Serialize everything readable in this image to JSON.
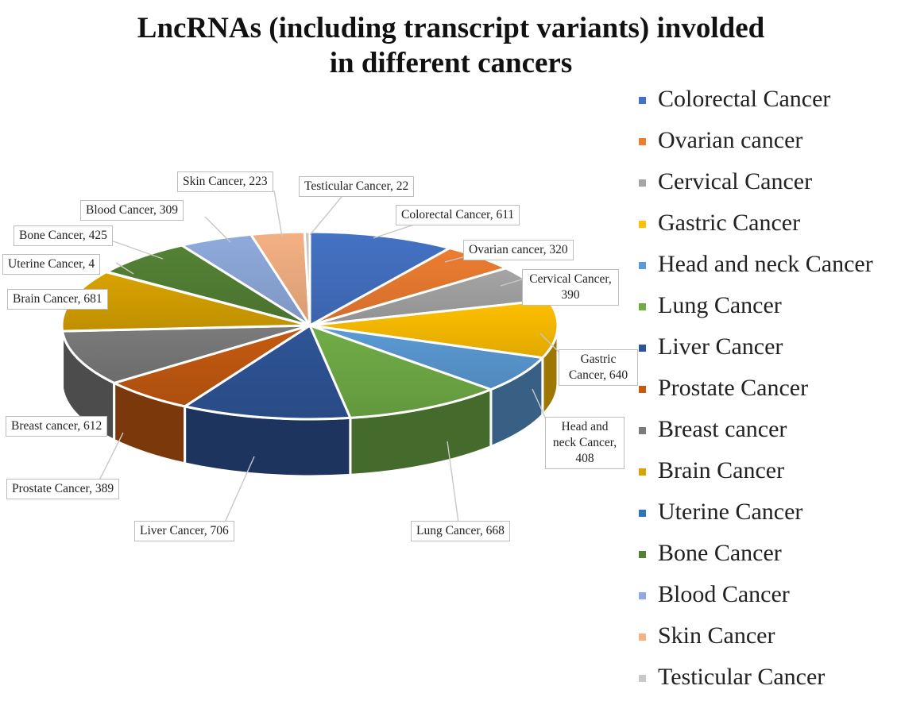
{
  "chart_data": {
    "type": "pie",
    "title_lines": [
      "LncRNAs (including transcript variants) involded",
      "in different cancers"
    ],
    "slices": [
      {
        "name": "Colorectal Cancer",
        "value": 611,
        "label": "Colorectal Cancer, 611",
        "color": "#4472c4"
      },
      {
        "name": "Ovarian cancer",
        "value": 320,
        "label": "Ovarian cancer, 320",
        "color": "#ed7d31"
      },
      {
        "name": "Cervical Cancer",
        "value": 390,
        "label": "Cervical Cancer, 390",
        "color": "#a5a5a5"
      },
      {
        "name": "Gastric Cancer",
        "value": 640,
        "label": "Gastric Cancer, 640",
        "color": "#ffc000"
      },
      {
        "name": "Head and neck Cancer",
        "value": 408,
        "label": "Head and neck Cancer, 408",
        "color": "#5b9bd5"
      },
      {
        "name": "Lung Cancer",
        "value": 668,
        "label": "Lung Cancer, 668",
        "color": "#70ad47"
      },
      {
        "name": "Liver Cancer",
        "value": 706,
        "label": "Liver Cancer, 706",
        "color": "#2f5597"
      },
      {
        "name": "Prostate Cancer",
        "value": 389,
        "label": "Prostate Cancer, 389",
        "color": "#c55a11"
      },
      {
        "name": "Breast cancer",
        "value": 612,
        "label": "Breast cancer, 612",
        "color": "#7b7b7b"
      },
      {
        "name": "Brain Cancer",
        "value": 681,
        "label": "Brain Cancer, 681",
        "color": "#d9a300"
      },
      {
        "name": "Uterine Cancer",
        "value": 4,
        "label": "Uterine Cancer, 4",
        "color": "#2e75b6"
      },
      {
        "name": "Bone Cancer",
        "value": 425,
        "label": "Bone Cancer, 425",
        "color": "#548235"
      },
      {
        "name": "Blood Cancer",
        "value": 309,
        "label": "Blood Cancer, 309",
        "color": "#8faadc"
      },
      {
        "name": "Skin Cancer",
        "value": 223,
        "label": "Skin Cancer, 223",
        "color": "#f4b183"
      },
      {
        "name": "Testicular Cancer",
        "value": 22,
        "label": "Testicular Cancer, 22",
        "color": "#c9c9c9"
      }
    ],
    "legend_position": "right",
    "style": "3d-exploded-pie"
  }
}
